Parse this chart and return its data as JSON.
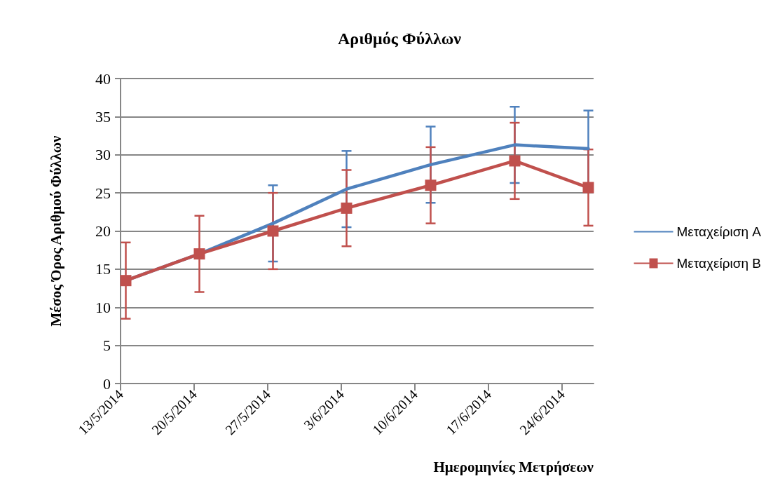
{
  "chart_data": {
    "type": "line",
    "title": "Αριθμός Φύλλων",
    "xlabel": "Ημερομηνίες Μετρήσεων",
    "ylabel": "Μέσος Όρος Αριθμού Φύλλων",
    "x": [
      "2014-05-13T12:00",
      "2014-05-20T12:00",
      "2014-05-27T12:00",
      "2014-06-03T12:00",
      "2014-06-11T12:00",
      "2014-06-19T12:00",
      "2014-06-26T12:00"
    ],
    "series": [
      {
        "name": "Μεταχείριση A",
        "color": "#4f81bd",
        "marker": "none",
        "values": [
          13.5,
          17.0,
          21.0,
          25.5,
          28.7,
          31.3,
          30.8
        ],
        "errors": [
          null,
          null,
          5,
          5,
          5,
          5,
          5
        ]
      },
      {
        "name": "Μεταχείριση B",
        "color": "#c0504d",
        "marker": "square",
        "values": [
          13.5,
          17.0,
          20.0,
          23.0,
          26.0,
          29.2,
          25.7
        ],
        "errors": [
          5,
          5,
          5,
          5,
          5,
          5,
          5
        ]
      }
    ],
    "xlim": [
      "2014-05-13",
      "2014-06-27"
    ],
    "xticks": [
      {
        "value": "2014-05-13",
        "label": "13/5/2014"
      },
      {
        "value": "2014-05-20",
        "label": "20/5/2014"
      },
      {
        "value": "2014-05-27",
        "label": "27/5/2014"
      },
      {
        "value": "2014-06-03",
        "label": "3/6/2014"
      },
      {
        "value": "2014-06-10",
        "label": "10/6/2014"
      },
      {
        "value": "2014-06-17",
        "label": "17/6/2014"
      },
      {
        "value": "2014-06-24",
        "label": "24/6/2014"
      }
    ],
    "ylim": [
      0,
      40
    ],
    "yticks": [
      0,
      5,
      10,
      15,
      20,
      25,
      30,
      35,
      40
    ],
    "grid": "y",
    "legend": "right",
    "line_style": "solid"
  }
}
